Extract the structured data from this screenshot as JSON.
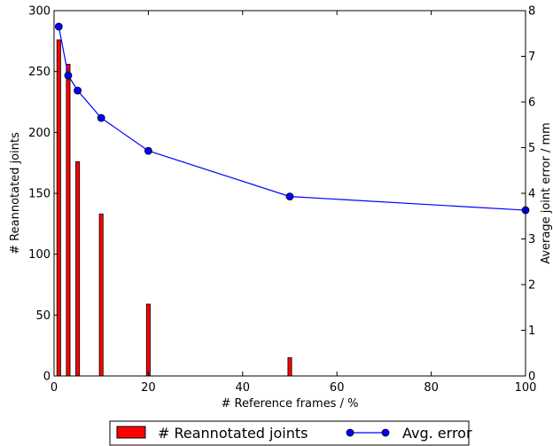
{
  "chart_data": {
    "type": "bar+line",
    "xlabel": "# Reference frames / %",
    "ylabel_left": "# Reannotated joints",
    "ylabel_right": "Average joint error / mm",
    "xlim": [
      0,
      100
    ],
    "ylim_left": [
      0,
      300
    ],
    "ylim_right": [
      0,
      8
    ],
    "x_ticks": [
      "0",
      "20",
      "40",
      "60",
      "80",
      "100"
    ],
    "y_left_ticks": [
      "0",
      "50",
      "100",
      "150",
      "200",
      "250",
      "300"
    ],
    "y_right_ticks": [
      "0",
      "1",
      "2",
      "3",
      "4",
      "5",
      "6",
      "7",
      "8"
    ],
    "grid": false,
    "legend_position": "bottom",
    "bars": {
      "name": "# Reannotated joints",
      "color": "#ff0000",
      "x": [
        1,
        3,
        5,
        10,
        20,
        50
      ],
      "values": [
        276,
        256,
        176,
        133,
        59,
        15
      ]
    },
    "line": {
      "name": "Avg. error",
      "color": "#0000ff",
      "x": [
        1,
        3,
        5,
        10,
        20,
        50,
        100
      ],
      "values": [
        7.65,
        6.58,
        6.25,
        5.65,
        4.93,
        3.93,
        3.63
      ]
    }
  }
}
